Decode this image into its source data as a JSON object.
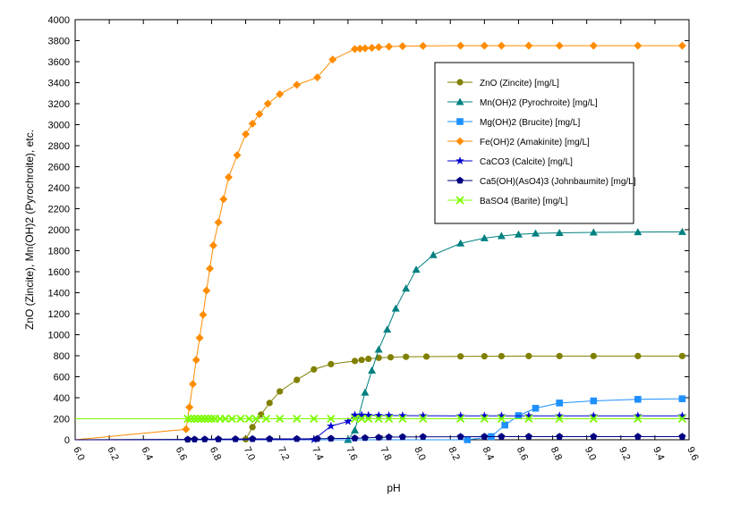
{
  "chart_data": {
    "type": "line",
    "title": "",
    "xlabel": "pH",
    "ylabel": "ZnO (Zincite), Mn(OH)2 (Pyrochroite), etc.",
    "xlim": [
      6.0,
      9.6
    ],
    "ylim": [
      0,
      4000
    ],
    "xticks": [
      "6.0",
      "6.2",
      "6.4",
      "6.6",
      "6.8",
      "7.0",
      "7.2",
      "7.4",
      "7.6",
      "7.8",
      "8.0",
      "8.2",
      "8.4",
      "8.6",
      "8.8",
      "9.0",
      "9.2",
      "9.4",
      "9.6"
    ],
    "yticks": [
      "0",
      "200",
      "400",
      "600",
      "800",
      "1000",
      "1200",
      "1400",
      "1600",
      "1800",
      "2000",
      "2200",
      "2400",
      "2600",
      "2800",
      "3000",
      "3200",
      "3400",
      "3600",
      "3800",
      "4000"
    ],
    "grid": false,
    "legend_position": "top-right",
    "series": [
      {
        "name": "ZnO (Zincite) [mg/L]",
        "color": "#808000",
        "marker": "circle",
        "points": [
          [
            6.0,
            0
          ],
          [
            6.66,
            2
          ],
          [
            7.0,
            5
          ],
          [
            7.04,
            120
          ],
          [
            7.09,
            240
          ],
          [
            7.14,
            350
          ],
          [
            7.2,
            460
          ],
          [
            7.3,
            570
          ],
          [
            7.4,
            670
          ],
          [
            7.5,
            720
          ],
          [
            7.64,
            750
          ],
          [
            7.68,
            760
          ],
          [
            7.72,
            770
          ],
          [
            7.78,
            780
          ],
          [
            7.85,
            785
          ],
          [
            7.94,
            790
          ],
          [
            8.06,
            792
          ],
          [
            8.26,
            794
          ],
          [
            8.4,
            795
          ],
          [
            8.5,
            796
          ],
          [
            8.66,
            797
          ],
          [
            8.84,
            797
          ],
          [
            9.04,
            797
          ],
          [
            9.3,
            797
          ],
          [
            9.56,
            797
          ]
        ]
      },
      {
        "name": "Mn(OH)2 (Pyrochroite) [mg/L]",
        "color": "#008080",
        "marker": "triangle",
        "points": [
          [
            6.0,
            0
          ],
          [
            7.6,
            0
          ],
          [
            7.64,
            90
          ],
          [
            7.7,
            450
          ],
          [
            7.74,
            660
          ],
          [
            7.78,
            860
          ],
          [
            7.83,
            1050
          ],
          [
            7.88,
            1250
          ],
          [
            7.94,
            1440
          ],
          [
            8.0,
            1620
          ],
          [
            8.1,
            1760
          ],
          [
            8.26,
            1870
          ],
          [
            8.4,
            1920
          ],
          [
            8.5,
            1940
          ],
          [
            8.6,
            1955
          ],
          [
            8.7,
            1965
          ],
          [
            8.84,
            1970
          ],
          [
            9.04,
            1975
          ],
          [
            9.3,
            1978
          ],
          [
            9.56,
            1980
          ]
        ]
      },
      {
        "name": "Mg(OH)2 (Brucite) [mg/L]",
        "color": "#1e90ff",
        "marker": "square",
        "points": [
          [
            6.0,
            0
          ],
          [
            8.3,
            0
          ],
          [
            8.44,
            30
          ],
          [
            8.52,
            140
          ],
          [
            8.6,
            230
          ],
          [
            8.7,
            300
          ],
          [
            8.84,
            350
          ],
          [
            9.04,
            370
          ],
          [
            9.3,
            385
          ],
          [
            9.56,
            390
          ]
        ]
      },
      {
        "name": "Fe(OH)2 (Amakinite) [mg/L]",
        "color": "#ff8c00",
        "marker": "diamond",
        "points": [
          [
            6.0,
            0
          ],
          [
            6.65,
            100
          ],
          [
            6.67,
            310
          ],
          [
            6.69,
            530
          ],
          [
            6.71,
            760
          ],
          [
            6.73,
            970
          ],
          [
            6.75,
            1190
          ],
          [
            6.77,
            1420
          ],
          [
            6.79,
            1630
          ],
          [
            6.81,
            1850
          ],
          [
            6.84,
            2070
          ],
          [
            6.87,
            2290
          ],
          [
            6.9,
            2500
          ],
          [
            6.95,
            2710
          ],
          [
            7.0,
            2910
          ],
          [
            7.04,
            3010
          ],
          [
            7.08,
            3100
          ],
          [
            7.13,
            3200
          ],
          [
            7.2,
            3290
          ],
          [
            7.3,
            3380
          ],
          [
            7.42,
            3450
          ],
          [
            7.51,
            3620
          ],
          [
            7.64,
            3720
          ],
          [
            7.67,
            3725
          ],
          [
            7.7,
            3728
          ],
          [
            7.74,
            3732
          ],
          [
            7.78,
            3738
          ],
          [
            7.84,
            3744
          ],
          [
            7.92,
            3748
          ],
          [
            8.04,
            3750
          ],
          [
            8.26,
            3752
          ],
          [
            8.4,
            3752
          ],
          [
            8.5,
            3752
          ],
          [
            8.66,
            3752
          ],
          [
            8.84,
            3752
          ],
          [
            9.04,
            3752
          ],
          [
            9.3,
            3752
          ],
          [
            9.56,
            3752
          ]
        ]
      },
      {
        "name": "CaCO3 (Calcite) [mg/L]",
        "color": "#0000cd",
        "marker": "star",
        "points": [
          [
            6.0,
            0
          ],
          [
            7.4,
            2
          ],
          [
            7.5,
            130
          ],
          [
            7.6,
            175
          ],
          [
            7.64,
            235
          ],
          [
            7.68,
            235
          ],
          [
            7.72,
            233
          ],
          [
            7.78,
            232
          ],
          [
            7.84,
            231
          ],
          [
            7.92,
            230
          ],
          [
            8.04,
            229
          ],
          [
            8.26,
            228
          ],
          [
            8.4,
            228
          ],
          [
            8.5,
            228
          ],
          [
            8.66,
            228
          ],
          [
            8.84,
            228
          ],
          [
            9.04,
            228
          ],
          [
            9.3,
            228
          ],
          [
            9.56,
            228
          ]
        ]
      },
      {
        "name": "Ca5(OH)(AsO4)3 (Johnbaumite) [mg/L]",
        "color": "#000080",
        "marker": "pentagon",
        "points": [
          [
            6.0,
            0
          ],
          [
            6.66,
            3
          ],
          [
            6.7,
            4
          ],
          [
            6.76,
            5
          ],
          [
            6.84,
            6
          ],
          [
            6.94,
            7
          ],
          [
            7.04,
            8
          ],
          [
            7.14,
            8
          ],
          [
            7.3,
            9
          ],
          [
            7.42,
            10
          ],
          [
            7.5,
            12
          ],
          [
            7.64,
            14
          ],
          [
            7.7,
            18
          ],
          [
            7.78,
            22
          ],
          [
            7.84,
            25
          ],
          [
            7.92,
            27
          ],
          [
            8.04,
            28
          ],
          [
            8.26,
            29
          ],
          [
            8.4,
            30
          ],
          [
            8.5,
            30
          ],
          [
            8.66,
            30
          ],
          [
            8.84,
            30
          ],
          [
            9.04,
            30
          ],
          [
            9.3,
            30
          ],
          [
            9.56,
            30
          ]
        ]
      },
      {
        "name": "BaSO4 (Barite) [mg/L]",
        "color": "#7cfc00",
        "marker": "x",
        "points": [
          [
            6.0,
            200
          ],
          [
            6.66,
            200
          ],
          [
            6.68,
            200
          ],
          [
            6.7,
            200
          ],
          [
            6.72,
            200
          ],
          [
            6.74,
            200
          ],
          [
            6.76,
            200
          ],
          [
            6.78,
            200
          ],
          [
            6.8,
            200
          ],
          [
            6.82,
            200
          ],
          [
            6.85,
            200
          ],
          [
            6.88,
            200
          ],
          [
            6.92,
            200
          ],
          [
            6.97,
            200
          ],
          [
            7.02,
            200
          ],
          [
            7.06,
            200
          ],
          [
            7.12,
            200
          ],
          [
            7.2,
            200
          ],
          [
            7.3,
            200
          ],
          [
            7.4,
            200
          ],
          [
            7.5,
            200
          ],
          [
            7.64,
            200
          ],
          [
            7.68,
            200
          ],
          [
            7.72,
            200
          ],
          [
            7.78,
            200
          ],
          [
            7.84,
            200
          ],
          [
            7.92,
            200
          ],
          [
            8.04,
            200
          ],
          [
            8.26,
            200
          ],
          [
            8.4,
            200
          ],
          [
            8.5,
            200
          ],
          [
            8.66,
            200
          ],
          [
            8.84,
            200
          ],
          [
            9.04,
            200
          ],
          [
            9.3,
            200
          ],
          [
            9.56,
            200
          ]
        ]
      }
    ]
  }
}
